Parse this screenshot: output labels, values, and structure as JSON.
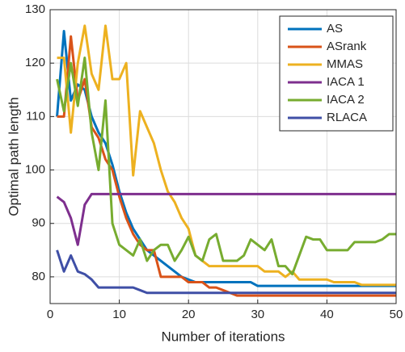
{
  "chart_data": {
    "type": "line",
    "x_label": "Number of iterations",
    "y_label": "Optimal path length",
    "x": [
      1,
      2,
      3,
      4,
      5,
      6,
      7,
      8,
      9,
      10,
      11,
      12,
      13,
      14,
      15,
      16,
      17,
      18,
      19,
      20,
      21,
      22,
      23,
      24,
      25,
      26,
      27,
      28,
      29,
      30,
      31,
      32,
      33,
      34,
      35,
      36,
      37,
      38,
      39,
      40,
      41,
      42,
      43,
      44,
      45,
      46,
      47,
      48,
      49,
      50
    ],
    "xlim": [
      0,
      50
    ],
    "xticks": [
      0,
      10,
      20,
      30,
      40,
      50
    ],
    "ylim": [
      75,
      130
    ],
    "yticks": [
      80,
      90,
      100,
      110,
      120,
      130
    ],
    "grid": true,
    "legend": "upper right",
    "series": [
      {
        "name": "AS",
        "color": "#0072BD",
        "values": [
          110,
          126,
          113,
          116,
          115,
          110,
          107,
          105,
          101,
          96,
          92,
          89,
          87,
          85,
          84,
          83,
          82,
          81,
          80,
          79.5,
          79,
          79,
          79,
          79,
          79,
          79,
          79,
          79,
          79,
          78.3,
          78.3,
          78.3,
          78.3,
          78.3,
          78.3,
          78.3,
          78.3,
          78.3,
          78.3,
          78.3,
          78.3,
          78.3,
          78.3,
          78.3,
          78.3,
          78.3,
          78.3,
          78.3,
          78.3,
          78.3
        ]
      },
      {
        "name": "ASrank",
        "color": "#D95319",
        "values": [
          110,
          110,
          125,
          113,
          117,
          108,
          106,
          102,
          100,
          95,
          91,
          88,
          86,
          85,
          85,
          80,
          80,
          80,
          80,
          79,
          79,
          79,
          78,
          78,
          77.5,
          77,
          76.5,
          76.5,
          76.5,
          76.5,
          76.5,
          76.5,
          76.5,
          76.5,
          76.5,
          76.5,
          76.5,
          76.5,
          76.5,
          76.5,
          76.5,
          76.5,
          76.5,
          76.5,
          76.5,
          76.5,
          76.5,
          76.5,
          76.5,
          76.5
        ]
      },
      {
        "name": "MMAS",
        "color": "#EDB120",
        "values": [
          121,
          121,
          107,
          120,
          127,
          118,
          115,
          127,
          117,
          117,
          120,
          99,
          111,
          108,
          105,
          100,
          96,
          94,
          91,
          89,
          84,
          83,
          82,
          82,
          82,
          82,
          82,
          82,
          82,
          82,
          81,
          81,
          81,
          80,
          81,
          79.5,
          79.5,
          79.5,
          79.5,
          79.5,
          79,
          79,
          79,
          79,
          78.5,
          78.5,
          78.5,
          78.5,
          78.5,
          78.5
        ]
      },
      {
        "name": "IACA 1",
        "color": "#7E2F8E",
        "values": [
          95,
          94,
          91,
          86,
          93.5,
          95.5,
          95.5,
          95.5,
          95.5,
          95.5,
          95.5,
          95.5,
          95.5,
          95.5,
          95.5,
          95.5,
          95.5,
          95.5,
          95.5,
          95.5,
          95.5,
          95.5,
          95.5,
          95.5,
          95.5,
          95.5,
          95.5,
          95.5,
          95.5,
          95.5,
          95.5,
          95.5,
          95.5,
          95.5,
          95.5,
          95.5,
          95.5,
          95.5,
          95.5,
          95.5,
          95.5,
          95.5,
          95.5,
          95.5,
          95.5,
          95.5,
          95.5,
          95.5,
          95.5,
          95.5
        ]
      },
      {
        "name": "IACA 2",
        "color": "#77AC30",
        "values": [
          117,
          111,
          120,
          112,
          121,
          107,
          100,
          113,
          90,
          86,
          85,
          84,
          87,
          83,
          85,
          86,
          86,
          83,
          85,
          87.5,
          84,
          83,
          87,
          88,
          83,
          83,
          83,
          84,
          87,
          86,
          85,
          87,
          82,
          82,
          80.5,
          84,
          87.5,
          87,
          87,
          85,
          85,
          85,
          85,
          86.5,
          86.5,
          86.5,
          86.5,
          87,
          88,
          88
        ]
      },
      {
        "name": "RLACA",
        "color": "#3F4FA6",
        "values": [
          85,
          81,
          84,
          81,
          80.5,
          79.5,
          78,
          78,
          78,
          78,
          78,
          78,
          77.5,
          77,
          77,
          77,
          77,
          77,
          77,
          77,
          77,
          77,
          77,
          77,
          77,
          77,
          77,
          77,
          77,
          77,
          77,
          77,
          77,
          77,
          77,
          77,
          77,
          77,
          77,
          77,
          77,
          77,
          77,
          77,
          77,
          77,
          77,
          77,
          77,
          77
        ]
      }
    ]
  }
}
